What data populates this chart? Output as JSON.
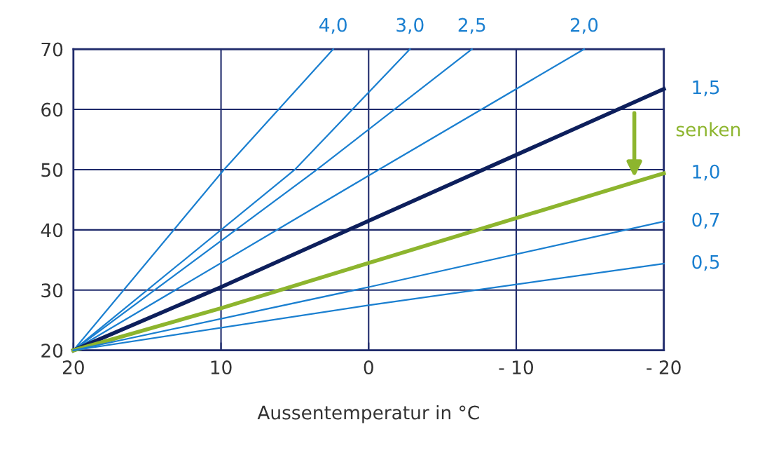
{
  "chart_data": {
    "type": "line",
    "xlabel": "Aussentemperatur in °C",
    "xlim": [
      20,
      -20
    ],
    "xticks": [
      20,
      10,
      0,
      {
        "value": -10,
        "label": "- 10"
      },
      {
        "value": -20,
        "label": "- 20"
      }
    ],
    "ylim": [
      20,
      70
    ],
    "yticks": [
      20,
      30,
      40,
      50,
      60,
      70
    ],
    "grid": true,
    "marker": "none",
    "line_style": "solid",
    "series": [
      {
        "name": "4,0",
        "color": "#1a7fd0",
        "x": [
          20,
          9.8,
          2.4
        ],
        "values": [
          20,
          50,
          70
        ]
      },
      {
        "name": "3,0",
        "color": "#1a7fd0",
        "x": [
          20,
          5,
          -2.8
        ],
        "values": [
          20,
          50,
          70
        ]
      },
      {
        "name": "2,5",
        "color": "#1a7fd0",
        "x": [
          20,
          3.5,
          -7
        ],
        "values": [
          20,
          50,
          70
        ]
      },
      {
        "name": "2,0",
        "color": "#1a7fd0",
        "x": [
          20,
          0,
          -14.6
        ],
        "values": [
          20,
          49,
          70
        ]
      },
      {
        "name": "1,5",
        "color": "#0d1f5c",
        "x": [
          20,
          10,
          0,
          -20
        ],
        "values": [
          20,
          30.5,
          41.5,
          63.4
        ]
      },
      {
        "name": "1,0",
        "color": "#8db52e",
        "x": [
          20,
          10,
          0,
          -20
        ],
        "values": [
          20,
          27,
          34.5,
          49.4
        ]
      },
      {
        "name": "0,7",
        "color": "#1a7fd0",
        "x": [
          20,
          0,
          -20
        ],
        "values": [
          20,
          30.5,
          41.4
        ]
      },
      {
        "name": "0,5",
        "color": "#1a7fd0",
        "x": [
          20,
          0,
          -20
        ],
        "values": [
          20,
          27.5,
          34.4
        ]
      }
    ],
    "annotations": [
      "senken"
    ]
  }
}
